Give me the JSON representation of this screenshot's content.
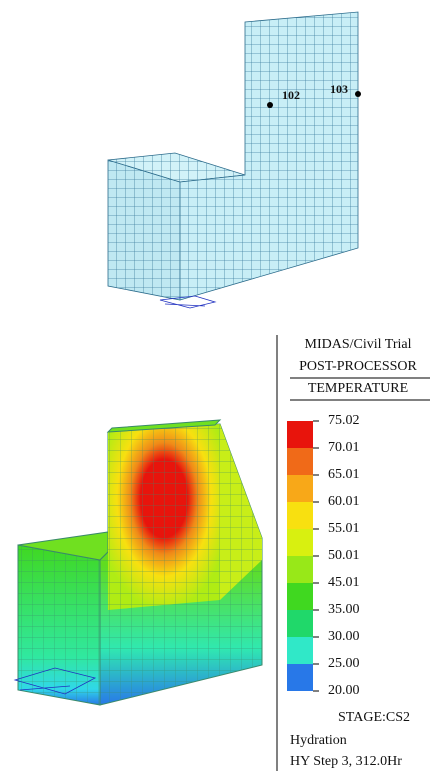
{
  "model_top": {
    "points": [
      {
        "label": "102"
      },
      {
        "label": "103"
      }
    ]
  },
  "panel": {
    "software": "MIDAS/Civil Trial",
    "module": "POST-PROCESSOR",
    "result": "TEMPERATURE",
    "legend": {
      "labels": [
        "75.02",
        "70.01",
        "65.01",
        "60.01",
        "55.01",
        "50.01",
        "45.01",
        "35.00",
        "30.00",
        "25.00",
        "20.00"
      ],
      "colors": [
        "#e8140c",
        "#f06a18",
        "#f8a818",
        "#f8e010",
        "#d8f010",
        "#98e818",
        "#40d820",
        "#20d86a",
        "#30e8c8",
        "#2878e8"
      ]
    },
    "stage": "STAGE:CS2",
    "analysis": "Hydration",
    "step": "HY Step 3, 312.0Hr"
  }
}
